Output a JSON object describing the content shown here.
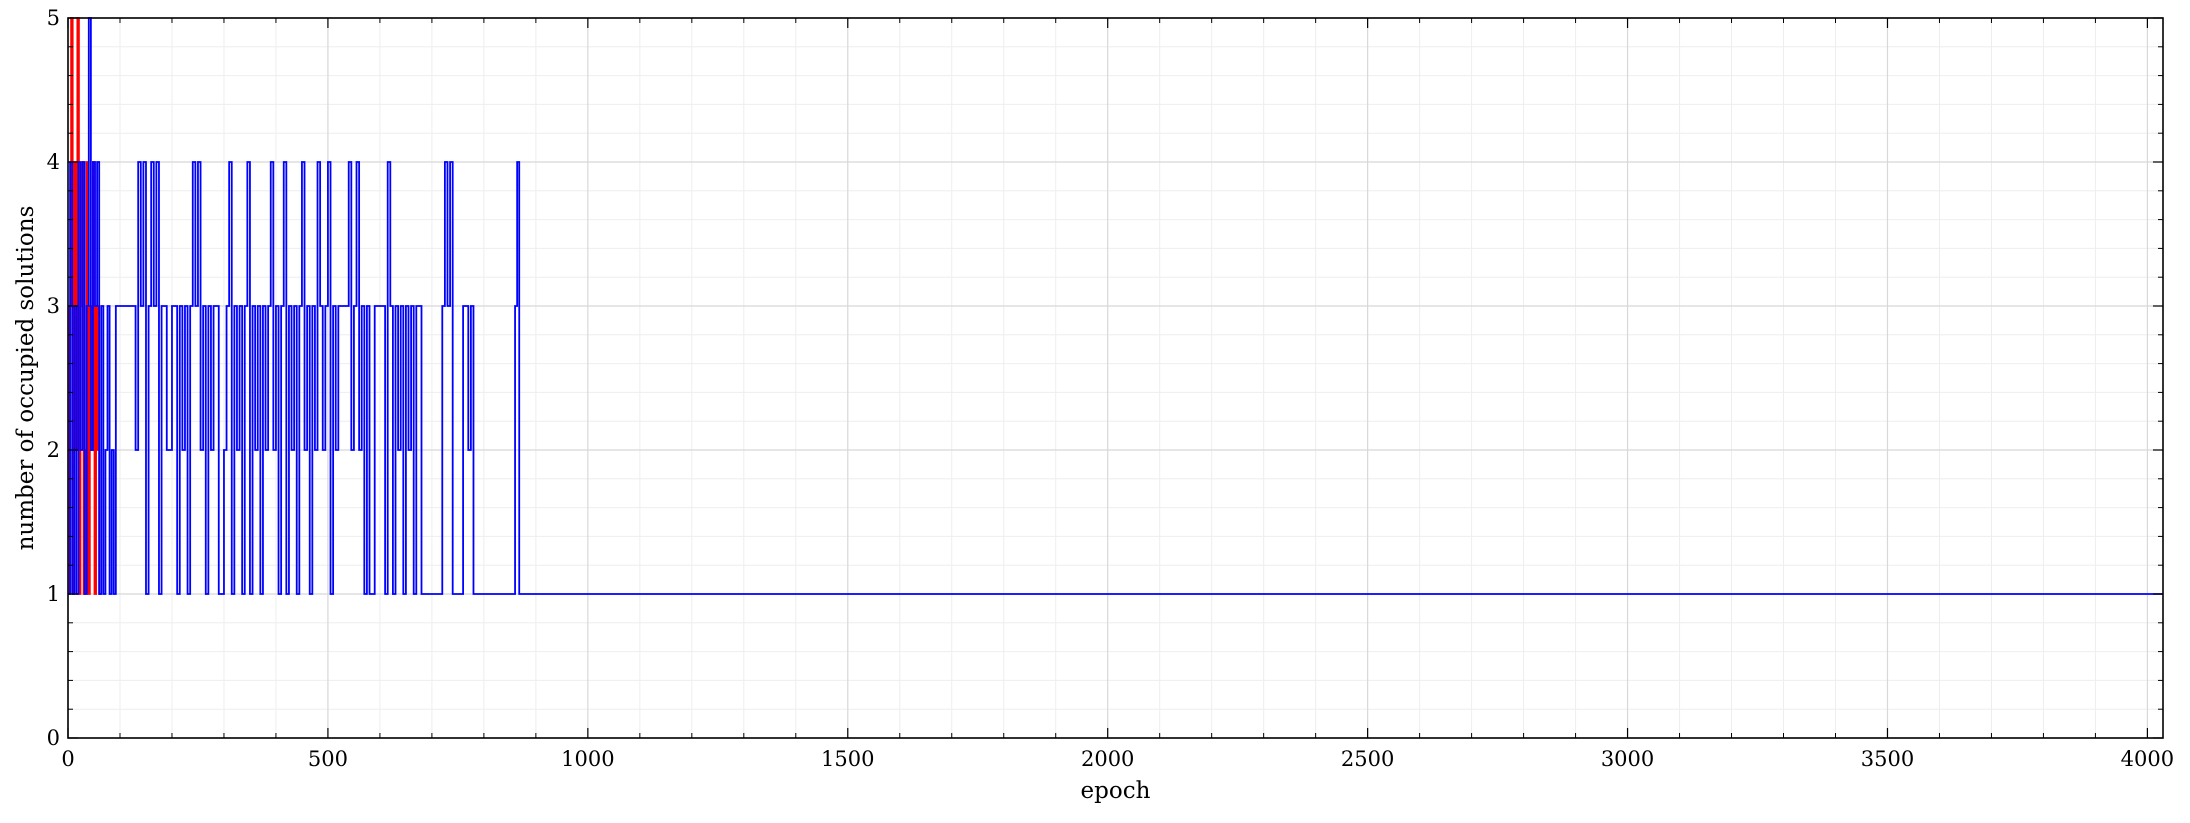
{
  "chart_data": {
    "type": "line",
    "title": "",
    "xlabel": "epoch",
    "ylabel": "number of occupied solutions",
    "xlim": [
      0,
      4030
    ],
    "ylim": [
      0,
      5
    ],
    "x_ticks": [
      0,
      500,
      1000,
      1500,
      2000,
      2500,
      3000,
      3500,
      4000
    ],
    "y_ticks": [
      0,
      1,
      2,
      3,
      4,
      5
    ],
    "x_tick_labels": [
      "0",
      "500",
      "1000",
      "1500",
      "2000",
      "2500",
      "3000",
      "3500",
      "4000"
    ],
    "y_tick_labels": [
      "0",
      "1",
      "2",
      "3",
      "4",
      "5"
    ],
    "grid": true,
    "step": true,
    "colors": {
      "series_red": "#ff0000",
      "series_blue": "#0000ff",
      "grid_major": "#d8d8d8",
      "grid_minor": "#eeeeee"
    },
    "series": [
      {
        "color": "#ff0000",
        "x": [
          0,
          3,
          6,
          9,
          12,
          15,
          18,
          21,
          24,
          27,
          30,
          33,
          36,
          39,
          42,
          45,
          48,
          51,
          54,
          57,
          60,
          63
        ],
        "values": [
          1,
          3,
          5,
          1,
          4,
          2,
          5,
          1,
          3,
          4,
          1,
          2,
          4,
          1,
          3,
          2,
          4,
          1,
          3,
          2,
          1,
          1
        ]
      },
      {
        "color": "#0000ff",
        "x": [
          0,
          4,
          8,
          12,
          16,
          20,
          24,
          28,
          32,
          36,
          40,
          44,
          48,
          52,
          56,
          60,
          64,
          68,
          72,
          76,
          80,
          84,
          88,
          92,
          100,
          110,
          120,
          130,
          135,
          140,
          145,
          150,
          155,
          160,
          165,
          170,
          175,
          180,
          190,
          200,
          210,
          215,
          220,
          225,
          230,
          235,
          240,
          245,
          250,
          255,
          260,
          265,
          270,
          275,
          280,
          285,
          290,
          300,
          305,
          310,
          315,
          320,
          325,
          330,
          335,
          340,
          345,
          350,
          355,
          360,
          365,
          370,
          375,
          380,
          385,
          390,
          395,
          400,
          405,
          410,
          415,
          420,
          425,
          430,
          435,
          440,
          445,
          450,
          455,
          460,
          465,
          470,
          475,
          480,
          485,
          490,
          495,
          500,
          505,
          510,
          515,
          520,
          530,
          540,
          545,
          550,
          555,
          560,
          565,
          570,
          575,
          580,
          590,
          600,
          610,
          615,
          620,
          625,
          630,
          635,
          640,
          645,
          650,
          655,
          660,
          665,
          670,
          680,
          700,
          720,
          725,
          730,
          735,
          740,
          750,
          760,
          770,
          775,
          780,
          785,
          790,
          800,
          860,
          864,
          868,
          873,
          4030
        ],
        "values": [
          1,
          4,
          1,
          3,
          1,
          4,
          2,
          4,
          1,
          3,
          5,
          2,
          4,
          3,
          4,
          1,
          3,
          1,
          2,
          3,
          1,
          2,
          1,
          3,
          3,
          3,
          3,
          2,
          4,
          3,
          4,
          1,
          3,
          4,
          3,
          4,
          1,
          3,
          2,
          3,
          1,
          3,
          2,
          3,
          1,
          3,
          4,
          3,
          4,
          2,
          3,
          1,
          3,
          2,
          3,
          3,
          1,
          2,
          3,
          4,
          1,
          3,
          2,
          3,
          1,
          3,
          4,
          1,
          3,
          2,
          3,
          1,
          3,
          2,
          3,
          4,
          2,
          3,
          1,
          3,
          4,
          1,
          3,
          2,
          3,
          1,
          3,
          4,
          2,
          3,
          1,
          3,
          2,
          4,
          3,
          2,
          3,
          4,
          1,
          3,
          2,
          3,
          3,
          4,
          2,
          3,
          4,
          2,
          3,
          1,
          3,
          1,
          3,
          3,
          1,
          4,
          3,
          1,
          3,
          2,
          3,
          1,
          3,
          2,
          3,
          1,
          3,
          1,
          1,
          3,
          4,
          3,
          4,
          1,
          1,
          3,
          2,
          3,
          1,
          1,
          1,
          1,
          3,
          4,
          1,
          1,
          1
        ]
      }
    ]
  }
}
